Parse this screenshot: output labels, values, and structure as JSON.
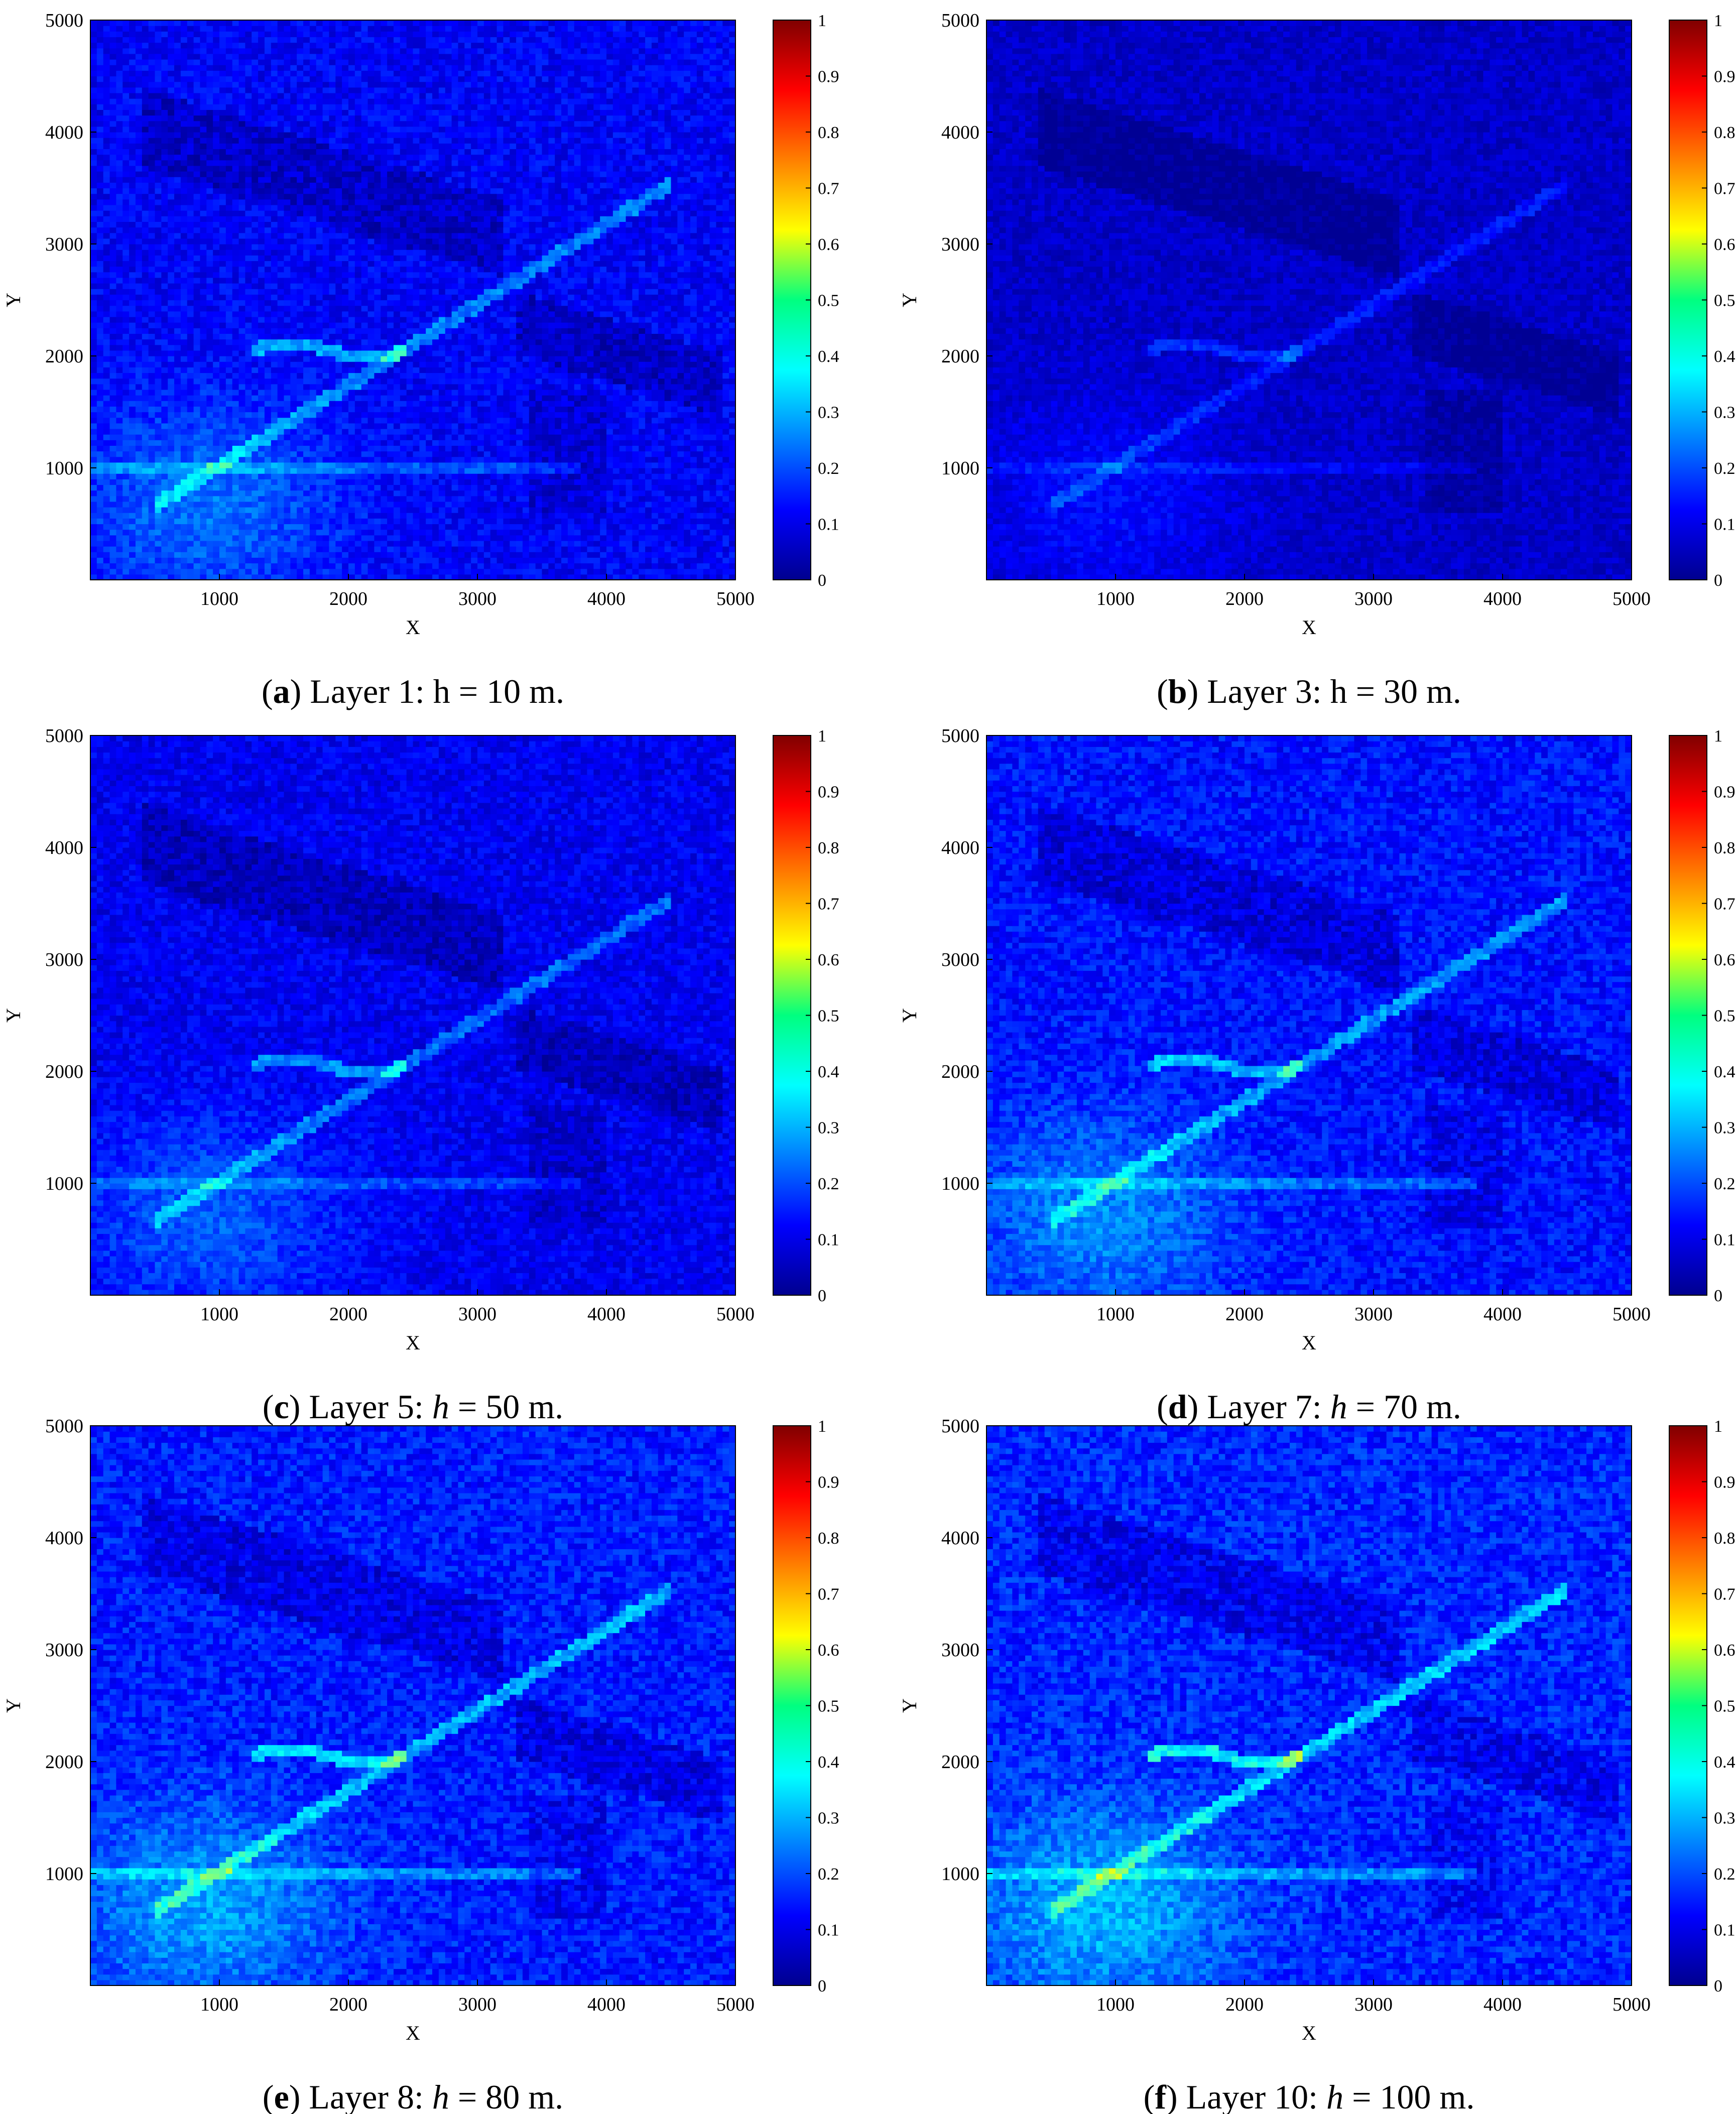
{
  "figure": {
    "panels": [
      {
        "letter": "a",
        "caption": "Layer 1: h = 10 m.",
        "italic_h": false
      },
      {
        "letter": "b",
        "caption": "Layer 3: h = 30 m.",
        "italic_h": false
      },
      {
        "letter": "c",
        "caption": "Layer 5: h = 50 m.",
        "italic_h": true
      },
      {
        "letter": "d",
        "caption": "Layer 7: h = 70 m.",
        "italic_h": true
      },
      {
        "letter": "e",
        "caption": "Layer 8: h = 80 m.",
        "italic_h": true
      },
      {
        "letter": "f",
        "caption": "Layer 10: h = 100 m.",
        "italic_h": true
      }
    ]
  },
  "chart_data": [
    {
      "type": "heatmap",
      "panel": "a",
      "layer": 1,
      "height_m": 10,
      "xlabel": "X",
      "ylabel": "Y",
      "xlim": [
        0,
        5000
      ],
      "ylim": [
        0,
        5000
      ],
      "xticks": [
        1000,
        2000,
        3000,
        4000,
        5000
      ],
      "yticks": [
        1000,
        2000,
        3000,
        4000,
        5000
      ],
      "colorbar": {
        "colormap": "jet",
        "range": [
          0,
          1
        ],
        "ticks": [
          0,
          0.1,
          0.2,
          0.3,
          0.4,
          0.5,
          0.6,
          0.7,
          0.8,
          0.9,
          1
        ]
      },
      "value_summary": {
        "typical": 0.12,
        "max_approx": 0.35
      }
    },
    {
      "type": "heatmap",
      "panel": "b",
      "layer": 3,
      "height_m": 30,
      "xlabel": "X",
      "ylabel": "Y",
      "xlim": [
        0,
        5000
      ],
      "ylim": [
        0,
        5000
      ],
      "xticks": [
        1000,
        2000,
        3000,
        4000,
        5000
      ],
      "yticks": [
        1000,
        2000,
        3000,
        4000,
        5000
      ],
      "colorbar": {
        "colormap": "jet",
        "range": [
          0,
          1
        ],
        "ticks": [
          0,
          0.1,
          0.2,
          0.3,
          0.4,
          0.5,
          0.6,
          0.7,
          0.8,
          0.9,
          1
        ]
      },
      "value_summary": {
        "typical": 0.07,
        "max_approx": 0.2
      }
    },
    {
      "type": "heatmap",
      "panel": "c",
      "layer": 5,
      "height_m": 50,
      "xlabel": "X",
      "ylabel": "Y",
      "xlim": [
        0,
        5000
      ],
      "ylim": [
        0,
        5000
      ],
      "xticks": [
        1000,
        2000,
        3000,
        4000,
        5000
      ],
      "yticks": [
        1000,
        2000,
        3000,
        4000,
        5000
      ],
      "colorbar": {
        "colormap": "jet",
        "range": [
          0,
          1
        ],
        "ticks": [
          0,
          0.1,
          0.2,
          0.3,
          0.4,
          0.5,
          0.6,
          0.7,
          0.8,
          0.9,
          1
        ]
      },
      "value_summary": {
        "typical": 0.11,
        "max_approx": 0.32
      }
    },
    {
      "type": "heatmap",
      "panel": "d",
      "layer": 7,
      "height_m": 70,
      "xlabel": "X",
      "ylabel": "Y",
      "xlim": [
        0,
        5000
      ],
      "ylim": [
        0,
        5000
      ],
      "xticks": [
        1000,
        2000,
        3000,
        4000,
        5000
      ],
      "yticks": [
        1000,
        2000,
        3000,
        4000,
        5000
      ],
      "colorbar": {
        "colormap": "jet",
        "range": [
          0,
          1
        ],
        "ticks": [
          0,
          0.1,
          0.2,
          0.3,
          0.4,
          0.5,
          0.6,
          0.7,
          0.8,
          0.9,
          1
        ]
      },
      "value_summary": {
        "typical": 0.14,
        "max_approx": 0.38
      }
    },
    {
      "type": "heatmap",
      "panel": "e",
      "layer": 8,
      "height_m": 80,
      "xlabel": "X",
      "ylabel": "Y",
      "xlim": [
        0,
        5000
      ],
      "ylim": [
        0,
        5000
      ],
      "xticks": [
        1000,
        2000,
        3000,
        4000,
        5000
      ],
      "yticks": [
        1000,
        2000,
        3000,
        4000,
        5000
      ],
      "colorbar": {
        "colormap": "jet",
        "range": [
          0,
          1
        ],
        "ticks": [
          0,
          0.1,
          0.2,
          0.3,
          0.4,
          0.5,
          0.6,
          0.7,
          0.8,
          0.9,
          1
        ]
      },
      "value_summary": {
        "typical": 0.15,
        "max_approx": 0.42
      }
    },
    {
      "type": "heatmap",
      "panel": "f",
      "layer": 10,
      "height_m": 100,
      "xlabel": "X",
      "ylabel": "Y",
      "xlim": [
        0,
        5000
      ],
      "ylim": [
        0,
        5000
      ],
      "xticks": [
        1000,
        2000,
        3000,
        4000,
        5000
      ],
      "yticks": [
        1000,
        2000,
        3000,
        4000,
        5000
      ],
      "colorbar": {
        "colormap": "jet",
        "range": [
          0,
          1
        ],
        "ticks": [
          0,
          0.1,
          0.2,
          0.3,
          0.4,
          0.5,
          0.6,
          0.7,
          0.8,
          0.9,
          1
        ]
      },
      "value_summary": {
        "typical": 0.16,
        "max_approx": 0.45
      }
    }
  ]
}
